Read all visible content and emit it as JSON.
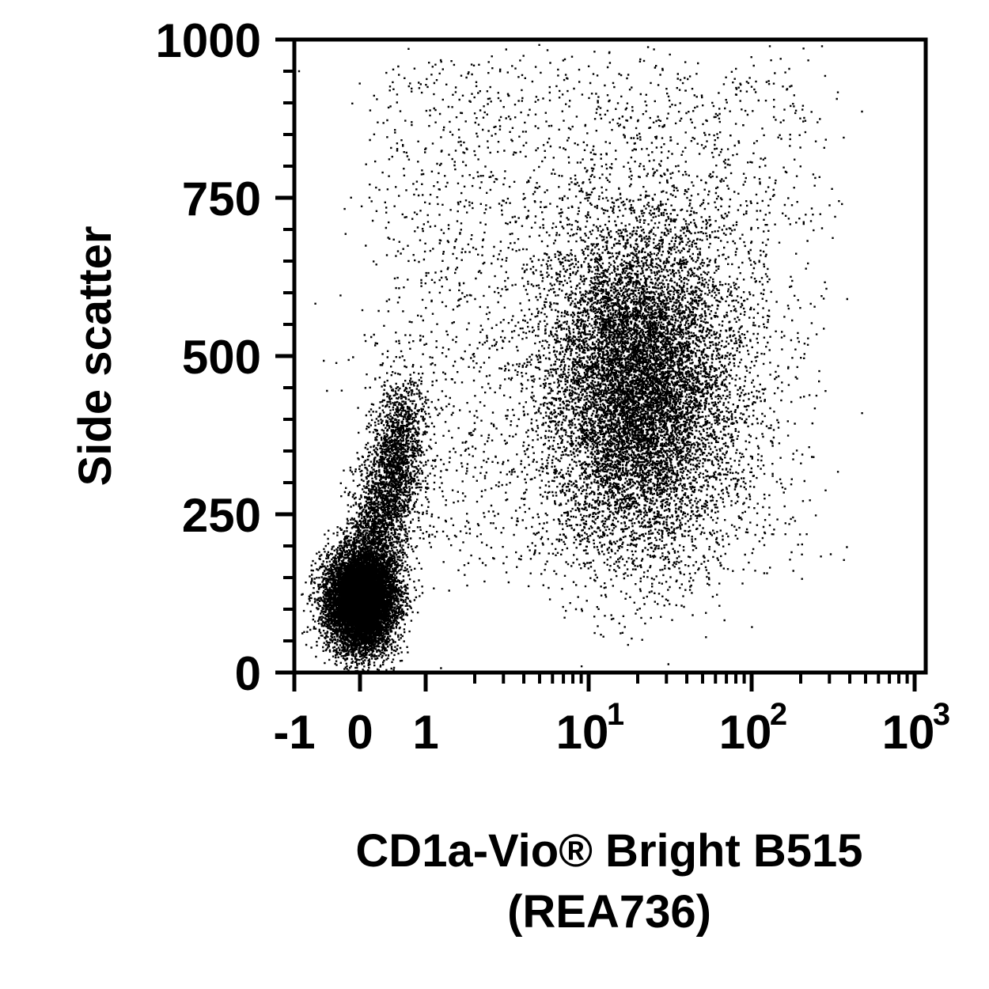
{
  "chart_data": {
    "type": "scatter",
    "plot_style": "flow cytometry dot plot",
    "xlabel_line1": "CD1a-Vio® Bright B515",
    "xlabel_line2": "(REA736)",
    "ylabel": "Side scatter",
    "x_scale": "biexponential (linear near 0, log above 1)",
    "y_scale": "linear",
    "xlim": [
      -1,
      1000
    ],
    "ylim": [
      0,
      1000
    ],
    "y_ticks": [
      {
        "value": 0,
        "label": "0"
      },
      {
        "value": 250,
        "label": "250"
      },
      {
        "value": 500,
        "label": "500"
      },
      {
        "value": 750,
        "label": "750"
      },
      {
        "value": 1000,
        "label": "1000"
      }
    ],
    "x_ticks": [
      {
        "value": -1,
        "label": "-1",
        "exp": ""
      },
      {
        "value": 0,
        "label": "0",
        "exp": ""
      },
      {
        "value": 1,
        "label": "1",
        "exp": ""
      },
      {
        "value": 10,
        "label": "10",
        "exp": "1"
      },
      {
        "value": 100,
        "label": "10",
        "exp": "2"
      },
      {
        "value": 1000,
        "label": "10",
        "exp": "3"
      }
    ],
    "populations": [
      {
        "name": "CD1a-negative, low side scatter",
        "x_center": 0,
        "y_center": 115,
        "weight": 0.36
      },
      {
        "name": "low side scatter tail",
        "x_center": 0.3,
        "y_center": 260,
        "weight": 0.12
      },
      {
        "name": "CD1a-positive, high side scatter",
        "x_center": 20,
        "y_center": 450,
        "weight": 0.4
      },
      {
        "name": "diffuse events",
        "x_center": 5,
        "y_center": 550,
        "weight": 0.12
      }
    ],
    "grid": false,
    "legend": "none",
    "colors": {
      "dots": "#000000",
      "axes": "#000000",
      "background": "#ffffff"
    }
  }
}
